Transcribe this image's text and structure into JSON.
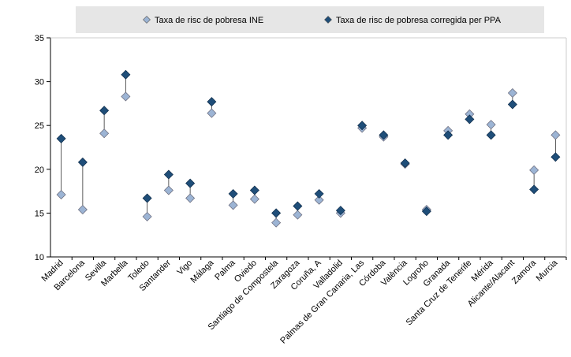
{
  "chart_data": {
    "type": "dot-range",
    "categories": [
      "Madrid",
      "Barcelona",
      "Sevilla",
      "Marbella",
      "Toledo",
      "Santander",
      "Vigo",
      "Málaga",
      "Palma",
      "Oviedo",
      "Santiago de Compostela",
      "Zaragoza",
      "Coruña, A",
      "Valladolid",
      "Palmas de Gran Canaria, Las",
      "Córdoba",
      "València",
      "Logroño",
      "Granada",
      "Santa Cruz de Tenerife",
      "Mérida",
      "Alicante/Alacant",
      "Zamora",
      "Murcia"
    ],
    "series": [
      {
        "name": "Taxa de risc de pobresa INE",
        "color": "#9cb4d4",
        "values": [
          17.1,
          15.4,
          24.1,
          28.3,
          14.6,
          17.6,
          16.7,
          26.4,
          15.9,
          16.6,
          13.9,
          14.8,
          16.5,
          15.0,
          24.7,
          23.7,
          20.6,
          15.4,
          24.4,
          26.3,
          25.1,
          28.7,
          19.9,
          23.9
        ]
      },
      {
        "name": "Taxa de risc de pobresa corregida per PPA",
        "color": "#1f4e79",
        "values": [
          23.5,
          20.8,
          26.7,
          30.8,
          16.7,
          19.4,
          18.4,
          27.7,
          17.2,
          17.6,
          15.0,
          15.8,
          17.2,
          15.3,
          25.0,
          23.9,
          20.7,
          15.2,
          23.9,
          25.7,
          23.9,
          27.4,
          17.7,
          21.4
        ]
      }
    ],
    "ylim": [
      10,
      35
    ],
    "yticks": [
      10,
      15,
      20,
      25,
      30,
      35
    ]
  }
}
